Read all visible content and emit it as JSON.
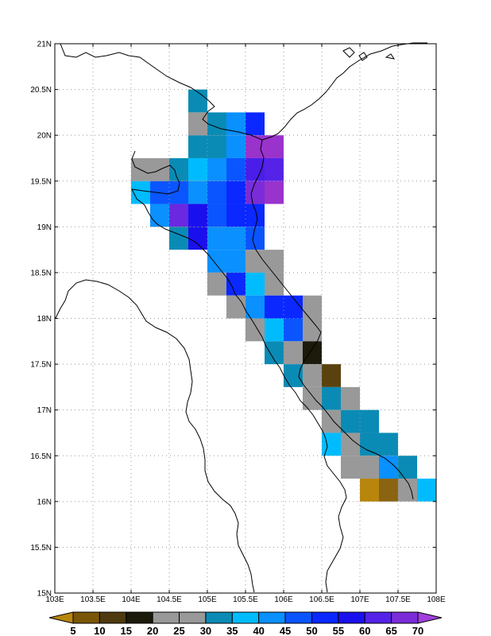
{
  "map": {
    "lon_range": [
      103,
      108
    ],
    "lat_range": [
      15,
      21
    ],
    "grid_spacing": 0.5,
    "grid_lines": "dotted",
    "lat_labels": [
      "21N",
      "20.5N",
      "20N",
      "19.5N",
      "19N",
      "18.5N",
      "18N",
      "17.5N",
      "17N",
      "16.5N",
      "16N",
      "15.5N",
      "15N"
    ],
    "lon_labels": [
      "103E",
      "103.5E",
      "104E",
      "104.5E",
      "105E",
      "105.5E",
      "106E",
      "106.5E",
      "107E",
      "107.5E",
      "108E"
    ],
    "coastline_color": "#000000"
  },
  "colorbar": {
    "labels": [
      "5",
      "10",
      "15",
      "20",
      "25",
      "30",
      "35",
      "40",
      "45",
      "50",
      "55",
      "60",
      "65",
      "70"
    ],
    "colors": [
      "#b8860b",
      "#7a5608",
      "#4e3a0e",
      "#1c1a0a",
      "#999999",
      "#999999",
      "#0a8bb5",
      "#00bcff",
      "#0a90ff",
      "#0a55ff",
      "#0a28ff",
      "#1a10ee",
      "#5522e8",
      "#7a2cd8",
      "#a040dd"
    ]
  },
  "cells": [
    {
      "lat": 20.375,
      "lon": 104.875,
      "color": "#0a8bb5"
    },
    {
      "lat": 20.125,
      "lon": 104.875,
      "color": "#999999"
    },
    {
      "lat": 20.125,
      "lon": 105.125,
      "color": "#0a8bb5"
    },
    {
      "lat": 20.125,
      "lon": 105.375,
      "color": "#0a90ff"
    },
    {
      "lat": 20.125,
      "lon": 105.625,
      "color": "#0a28ff"
    },
    {
      "lat": 19.875,
      "lon": 104.875,
      "color": "#0a8bb5"
    },
    {
      "lat": 19.875,
      "lon": 105.125,
      "color": "#0a8bb5"
    },
    {
      "lat": 19.875,
      "lon": 105.375,
      "color": "#0a90ff"
    },
    {
      "lat": 19.875,
      "lon": 105.625,
      "color": "#9933cc"
    },
    {
      "lat": 19.875,
      "lon": 105.875,
      "color": "#9933cc"
    },
    {
      "lat": 19.625,
      "lon": 104.125,
      "color": "#999999"
    },
    {
      "lat": 19.625,
      "lon": 104.375,
      "color": "#999999"
    },
    {
      "lat": 19.625,
      "lon": 104.625,
      "color": "#0a8bb5"
    },
    {
      "lat": 19.625,
      "lon": 104.875,
      "color": "#00bcff"
    },
    {
      "lat": 19.625,
      "lon": 105.125,
      "color": "#0a90ff"
    },
    {
      "lat": 19.625,
      "lon": 105.375,
      "color": "#0a55ff"
    },
    {
      "lat": 19.625,
      "lon": 105.625,
      "color": "#4a1ee8"
    },
    {
      "lat": 19.625,
      "lon": 105.875,
      "color": "#5522e8"
    },
    {
      "lat": 19.375,
      "lon": 104.125,
      "color": "#00bcff"
    },
    {
      "lat": 19.375,
      "lon": 104.375,
      "color": "#0a55ff"
    },
    {
      "lat": 19.375,
      "lon": 104.625,
      "color": "#0a55ff"
    },
    {
      "lat": 19.375,
      "lon": 104.875,
      "color": "#0a90ff"
    },
    {
      "lat": 19.375,
      "lon": 105.125,
      "color": "#0a55ff"
    },
    {
      "lat": 19.375,
      "lon": 105.375,
      "color": "#0a28ff"
    },
    {
      "lat": 19.375,
      "lon": 105.625,
      "color": "#7a2cd8"
    },
    {
      "lat": 19.375,
      "lon": 105.875,
      "color": "#9933cc"
    },
    {
      "lat": 19.125,
      "lon": 104.375,
      "color": "#0a90ff"
    },
    {
      "lat": 19.125,
      "lon": 104.625,
      "color": "#6a28e0"
    },
    {
      "lat": 19.125,
      "lon": 104.875,
      "color": "#1a10ee"
    },
    {
      "lat": 19.125,
      "lon": 105.125,
      "color": "#0a55ff"
    },
    {
      "lat": 19.125,
      "lon": 105.375,
      "color": "#0a28ff"
    },
    {
      "lat": 19.125,
      "lon": 105.625,
      "color": "#0a28ff"
    },
    {
      "lat": 18.875,
      "lon": 104.625,
      "color": "#0a8bb5"
    },
    {
      "lat": 18.875,
      "lon": 104.875,
      "color": "#1a10ee"
    },
    {
      "lat": 18.875,
      "lon": 105.125,
      "color": "#0a90ff"
    },
    {
      "lat": 18.875,
      "lon": 105.375,
      "color": "#0a90ff"
    },
    {
      "lat": 18.875,
      "lon": 105.625,
      "color": "#0a55ff"
    },
    {
      "lat": 18.625,
      "lon": 105.125,
      "color": "#0a90ff"
    },
    {
      "lat": 18.625,
      "lon": 105.375,
      "color": "#0a90ff"
    },
    {
      "lat": 18.625,
      "lon": 105.625,
      "color": "#999999"
    },
    {
      "lat": 18.625,
      "lon": 105.875,
      "color": "#999999"
    },
    {
      "lat": 18.375,
      "lon": 105.125,
      "color": "#999999"
    },
    {
      "lat": 18.375,
      "lon": 105.375,
      "color": "#0a28ff"
    },
    {
      "lat": 18.375,
      "lon": 105.625,
      "color": "#00bcff"
    },
    {
      "lat": 18.375,
      "lon": 105.875,
      "color": "#999999"
    },
    {
      "lat": 18.125,
      "lon": 105.375,
      "color": "#999999"
    },
    {
      "lat": 18.125,
      "lon": 105.625,
      "color": "#0a90ff"
    },
    {
      "lat": 18.125,
      "lon": 105.875,
      "color": "#0a28ff"
    },
    {
      "lat": 18.125,
      "lon": 106.125,
      "color": "#0a28ff"
    },
    {
      "lat": 18.125,
      "lon": 106.375,
      "color": "#999999"
    },
    {
      "lat": 17.875,
      "lon": 105.625,
      "color": "#999999"
    },
    {
      "lat": 17.875,
      "lon": 105.875,
      "color": "#00bcff"
    },
    {
      "lat": 17.875,
      "lon": 106.125,
      "color": "#0a55ff"
    },
    {
      "lat": 17.875,
      "lon": 106.375,
      "color": "#999999"
    },
    {
      "lat": 17.625,
      "lon": 105.875,
      "color": "#0a8bb5"
    },
    {
      "lat": 17.625,
      "lon": 106.125,
      "color": "#999999"
    },
    {
      "lat": 17.625,
      "lon": 106.375,
      "color": "#1c1a0a"
    },
    {
      "lat": 17.375,
      "lon": 106.125,
      "color": "#0a8bb5"
    },
    {
      "lat": 17.375,
      "lon": 106.375,
      "color": "#999999"
    },
    {
      "lat": 17.375,
      "lon": 106.625,
      "color": "#5a420e"
    },
    {
      "lat": 17.125,
      "lon": 106.375,
      "color": "#999999"
    },
    {
      "lat": 17.125,
      "lon": 106.625,
      "color": "#0a8bb5"
    },
    {
      "lat": 17.125,
      "lon": 106.875,
      "color": "#999999"
    },
    {
      "lat": 16.875,
      "lon": 106.625,
      "color": "#999999"
    },
    {
      "lat": 16.875,
      "lon": 106.875,
      "color": "#0a8bb5"
    },
    {
      "lat": 16.875,
      "lon": 107.125,
      "color": "#0a8bb5"
    },
    {
      "lat": 16.625,
      "lon": 106.625,
      "color": "#00bcff"
    },
    {
      "lat": 16.625,
      "lon": 106.875,
      "color": "#999999"
    },
    {
      "lat": 16.625,
      "lon": 107.125,
      "color": "#0a8bb5"
    },
    {
      "lat": 16.625,
      "lon": 107.375,
      "color": "#0a8bb5"
    },
    {
      "lat": 16.375,
      "lon": 106.875,
      "color": "#999999"
    },
    {
      "lat": 16.375,
      "lon": 107.125,
      "color": "#999999"
    },
    {
      "lat": 16.375,
      "lon": 107.375,
      "color": "#0a90ff"
    },
    {
      "lat": 16.375,
      "lon": 107.625,
      "color": "#0a8bb5"
    },
    {
      "lat": 16.125,
      "lon": 107.125,
      "color": "#b8860b"
    },
    {
      "lat": 16.125,
      "lon": 107.375,
      "color": "#8a6410"
    },
    {
      "lat": 16.125,
      "lon": 107.625,
      "color": "#999999"
    },
    {
      "lat": 16.125,
      "lon": 107.875,
      "color": "#00bcff"
    }
  ]
}
